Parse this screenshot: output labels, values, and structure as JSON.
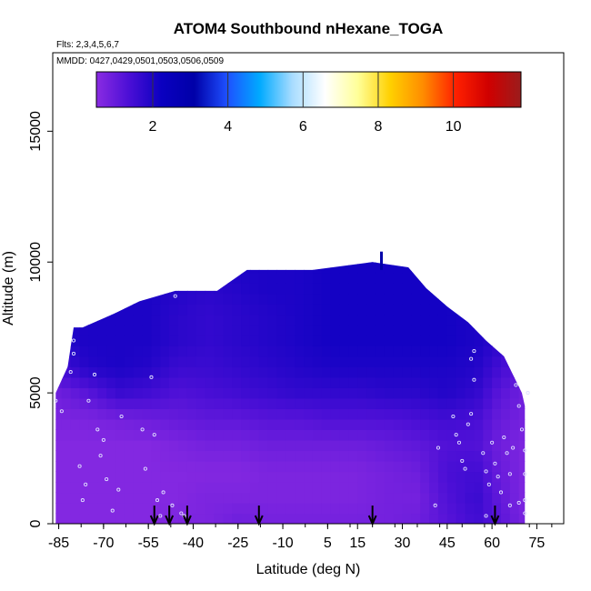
{
  "chart_data": {
    "type": "heatmap",
    "title": "ATOM4 Southbound nHexane_TOGA",
    "flights_label": "Flts: 2,3,4,5,6,7",
    "dates_label": "MMDD: 0427,0429,0501,0503,0506,0509",
    "xlabel": "Latitude (deg N)",
    "ylabel": "Altitude (m)",
    "xlim": [
      -87,
      84
    ],
    "ylim": [
      0,
      18000
    ],
    "x_ticks": [
      -85,
      -70,
      -55,
      -40,
      -25,
      -10,
      5,
      15,
      30,
      45,
      60,
      75
    ],
    "x_tick_labels": [
      "-85",
      "-70",
      "-55",
      "-40",
      "-25",
      "-10",
      "5",
      "15",
      "30",
      "45",
      "60",
      "75"
    ],
    "y_ticks": [
      0,
      5000,
      10000,
      15000
    ],
    "y_tick_labels": [
      "0",
      "5000",
      "10000",
      "15000"
    ],
    "colorbar": {
      "range": [
        0.5,
        11.8
      ],
      "ticks": [
        2,
        4,
        6,
        8,
        10
      ],
      "tick_labels": [
        "2",
        "4",
        "6",
        "8",
        "10"
      ],
      "colors": [
        "#8a2be2",
        "#4b0fd6",
        "#0a00c0",
        "#0000a8",
        "#1e50ff",
        "#00aaff",
        "#a8dcff",
        "#ffffff",
        "#ffff99",
        "#ffd000",
        "#ff8c00",
        "#ff2000",
        "#d00000",
        "#9b1c1c"
      ]
    },
    "field_envelope": [
      [
        -86,
        5000
      ],
      [
        -82,
        6000
      ],
      [
        -80,
        7500
      ],
      [
        -77,
        7500
      ],
      [
        -67,
        8000
      ],
      [
        -58,
        8500
      ],
      [
        -46,
        8900
      ],
      [
        -32,
        8900
      ],
      [
        -22,
        9700
      ],
      [
        0,
        9700
      ],
      [
        20,
        10000
      ],
      [
        32,
        9800
      ],
      [
        38,
        9000
      ],
      [
        45,
        8300
      ],
      [
        52,
        7700
      ],
      [
        58,
        7000
      ],
      [
        64,
        6400
      ],
      [
        70,
        5000
      ],
      [
        71,
        4500
      ]
    ],
    "field_values": {
      "lat": [
        -85,
        -75,
        -65,
        -55,
        -45,
        -35,
        -25,
        -15,
        -5,
        5,
        15,
        25,
        35,
        45,
        55,
        62,
        70
      ],
      "alt": [
        0,
        1000,
        2000,
        3000,
        4000,
        5000,
        6000,
        7000,
        8000,
        9000,
        10000
      ],
      "concentration": [
        [
          0.6,
          0.6,
          0.6,
          0.6,
          0.7,
          0.7,
          0.9,
          0.8,
          0.8,
          0.8,
          0.8,
          0.8,
          0.9,
          1.2,
          1.5,
          1.2,
          0.8
        ],
        [
          0.6,
          0.6,
          0.6,
          0.6,
          0.6,
          0.7,
          0.7,
          0.7,
          0.7,
          0.7,
          0.7,
          0.8,
          0.8,
          1.3,
          1.6,
          1.1,
          0.7
        ],
        [
          0.6,
          0.6,
          0.6,
          0.6,
          0.6,
          0.6,
          0.6,
          0.7,
          0.7,
          0.7,
          0.7,
          0.8,
          0.9,
          1.4,
          1.5,
          1.0,
          0.7
        ],
        [
          0.6,
          0.6,
          0.6,
          0.6,
          0.7,
          0.8,
          0.8,
          0.9,
          0.9,
          0.9,
          0.9,
          1.0,
          1.1,
          1.3,
          1.3,
          0.9,
          0.7
        ],
        [
          0.7,
          0.7,
          0.8,
          0.9,
          1.0,
          1.1,
          1.1,
          1.2,
          1.2,
          1.3,
          1.3,
          1.3,
          1.4,
          1.5,
          1.4,
          1.0,
          0.8
        ],
        [
          0.9,
          1.2,
          1.6,
          1.5,
          1.3,
          1.4,
          1.5,
          1.6,
          1.7,
          1.7,
          1.7,
          1.8,
          1.8,
          1.9,
          1.7,
          1.2,
          0.9
        ],
        [
          1.5,
          1.9,
          2.0,
          1.9,
          1.6,
          1.6,
          1.7,
          1.8,
          1.9,
          2.0,
          2.0,
          2.0,
          2.0,
          2.0,
          1.9,
          1.5,
          1.2
        ],
        [
          1.9,
          2.0,
          2.0,
          2.0,
          1.8,
          1.7,
          1.8,
          1.9,
          2.0,
          2.1,
          2.1,
          2.1,
          2.1,
          2.1,
          2.0,
          1.8,
          1.5
        ],
        [
          2.0,
          2.0,
          2.0,
          2.0,
          1.8,
          1.7,
          1.8,
          1.9,
          2.0,
          2.1,
          2.1,
          2.1,
          2.1,
          2.1,
          2.0,
          1.9,
          1.7
        ],
        [
          2.0,
          2.0,
          2.0,
          2.0,
          1.9,
          1.8,
          1.9,
          2.0,
          2.0,
          2.1,
          2.1,
          2.1,
          2.1,
          2.1,
          2.0,
          2.0,
          1.9
        ],
        [
          2.0,
          2.0,
          2.0,
          2.0,
          2.0,
          2.0,
          2.0,
          2.0,
          2.0,
          2.1,
          2.1,
          2.1,
          2.1,
          2.1,
          2.0,
          2.0,
          2.0
        ]
      ]
    },
    "sample_points": [
      [
        -86,
        4700
      ],
      [
        -84,
        4300
      ],
      [
        -81,
        5800
      ],
      [
        -80,
        6500
      ],
      [
        -80,
        7000
      ],
      [
        -78,
        2200
      ],
      [
        -77,
        900
      ],
      [
        -76,
        1500
      ],
      [
        -75,
        4700
      ],
      [
        -73,
        5700
      ],
      [
        -72,
        3600
      ],
      [
        -71,
        2600
      ],
      [
        -70,
        3200
      ],
      [
        -69,
        1700
      ],
      [
        -67,
        500
      ],
      [
        -65,
        1300
      ],
      [
        -64,
        4100
      ],
      [
        -57,
        3600
      ],
      [
        -56,
        2100
      ],
      [
        -54,
        5600
      ],
      [
        -53,
        3400
      ],
      [
        -52,
        900
      ],
      [
        -51,
        300
      ],
      [
        -50,
        1200
      ],
      [
        -47,
        700
      ],
      [
        -46,
        8700
      ],
      [
        -44,
        400
      ],
      [
        -43,
        300
      ],
      [
        48,
        3400
      ],
      [
        49,
        3100
      ],
      [
        50,
        2400
      ],
      [
        51,
        2100
      ],
      [
        52,
        3800
      ],
      [
        53,
        4200
      ],
      [
        54,
        5500
      ],
      [
        57,
        2700
      ],
      [
        58,
        2000
      ],
      [
        59,
        1500
      ],
      [
        60,
        3100
      ],
      [
        61,
        2300
      ],
      [
        62,
        1800
      ],
      [
        63,
        1200
      ],
      [
        64,
        3300
      ],
      [
        65,
        2700
      ],
      [
        66,
        1900
      ],
      [
        67,
        2900
      ],
      [
        68,
        5300
      ],
      [
        69,
        4500
      ],
      [
        70,
        3600
      ],
      [
        71,
        2800
      ],
      [
        71,
        1900
      ],
      [
        71,
        900
      ],
      [
        72,
        5000
      ],
      [
        69,
        800
      ],
      [
        54,
        6600
      ],
      [
        53,
        6300
      ],
      [
        47,
        4100
      ],
      [
        41,
        700
      ],
      [
        58,
        300
      ],
      [
        42,
        2900
      ],
      [
        66,
        700
      ],
      [
        71,
        400
      ]
    ],
    "flight_markers": [
      -53,
      -48,
      -42,
      -18,
      20,
      61
    ],
    "tick_spike": {
      "lat": 23,
      "alt": 10100
    }
  }
}
